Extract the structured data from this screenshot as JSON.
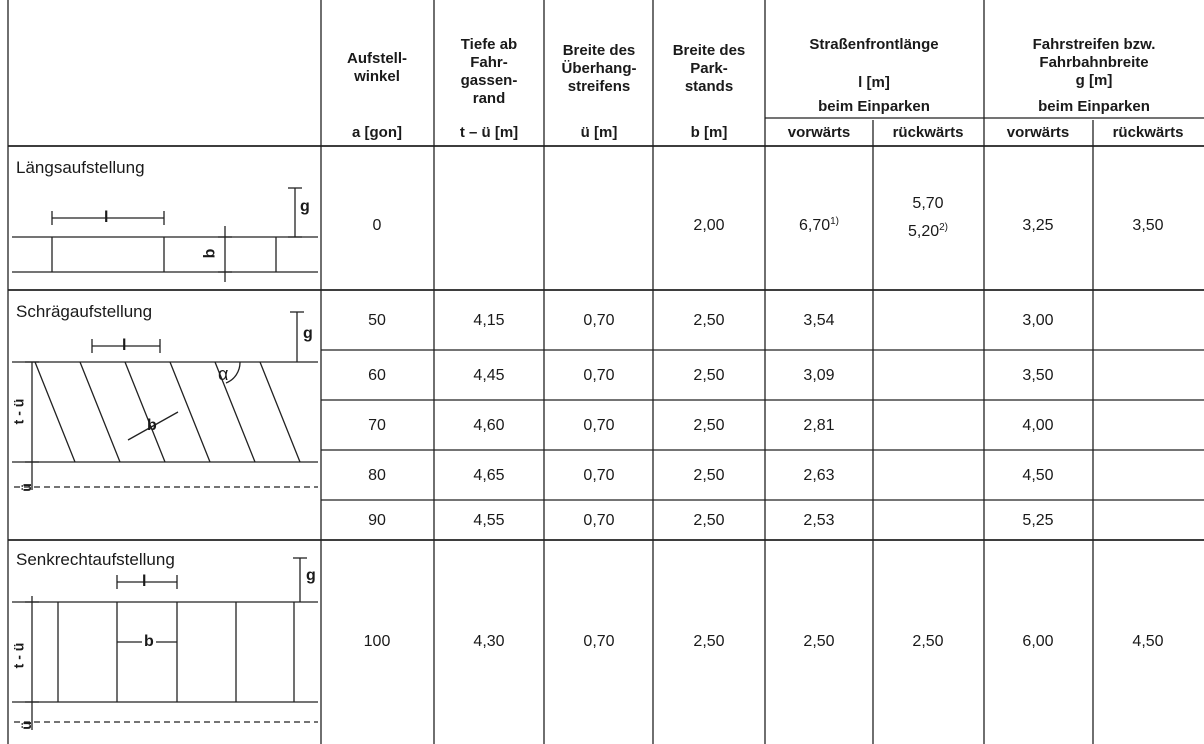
{
  "header": {
    "aufstellwinkel": [
      "Aufstell-",
      "winkel"
    ],
    "tiefe": [
      "Tiefe ab",
      "Fahr-",
      "gassen-",
      "rand"
    ],
    "ueberhang": [
      "Breite des",
      "Überhang-",
      "streifens"
    ],
    "parkstand": [
      "Breite des",
      "Park-",
      "stands"
    ],
    "frontlaenge": "Straßenfrontlänge",
    "frontlaenge_unit": "l [m]",
    "fahrbahn": [
      "Fahrstreifen bzw.",
      "Fahrbahnbreite",
      "g [m]"
    ],
    "beim_einparken": "beim Einparken",
    "vorwaerts": "vorwärts",
    "rueckwaerts": "rückwärts",
    "units": [
      "a [gon]",
      "t – ü [m]",
      "ü [m]",
      "b [m]"
    ]
  },
  "sections": {
    "laengs": "Längsaufstellung",
    "schraeg": "Schrägaufstellung",
    "senkrecht": "Senkrechtaufstellung"
  },
  "diagram_labels": {
    "l": "l",
    "g": "g",
    "b": "b",
    "alpha": "α",
    "t_minus_u": "t - ü",
    "u": "ü"
  },
  "rows": [
    {
      "a": "0",
      "tu": "",
      "u": "",
      "b": "2,00",
      "l_vor": "6,70",
      "l_vor_note": "1)",
      "l_rueck_1": "5,70",
      "l_rueck_2": "5,20",
      "l_rueck_2_note": "2)",
      "g_vor": "3,25",
      "g_rueck": "3,50"
    },
    {
      "a": "50",
      "tu": "4,15",
      "u": "0,70",
      "b": "2,50",
      "l_vor": "3,54",
      "l_rueck": "",
      "g_vor": "3,00",
      "g_rueck": ""
    },
    {
      "a": "60",
      "tu": "4,45",
      "u": "0,70",
      "b": "2,50",
      "l_vor": "3,09",
      "l_rueck": "",
      "g_vor": "3,50",
      "g_rueck": ""
    },
    {
      "a": "70",
      "tu": "4,60",
      "u": "0,70",
      "b": "2,50",
      "l_vor": "2,81",
      "l_rueck": "",
      "g_vor": "4,00",
      "g_rueck": ""
    },
    {
      "a": "80",
      "tu": "4,65",
      "u": "0,70",
      "b": "2,50",
      "l_vor": "2,63",
      "l_rueck": "",
      "g_vor": "4,50",
      "g_rueck": ""
    },
    {
      "a": "90",
      "tu": "4,55",
      "u": "0,70",
      "b": "2,50",
      "l_vor": "2,53",
      "l_rueck": "",
      "g_vor": "5,25",
      "g_rueck": ""
    },
    {
      "a": "100",
      "tu": "4,30",
      "u": "0,70",
      "b": "2,50",
      "l_vor": "2,50",
      "l_rueck": "2,50",
      "g_vor": "6,00",
      "g_rueck": "4,50"
    }
  ]
}
